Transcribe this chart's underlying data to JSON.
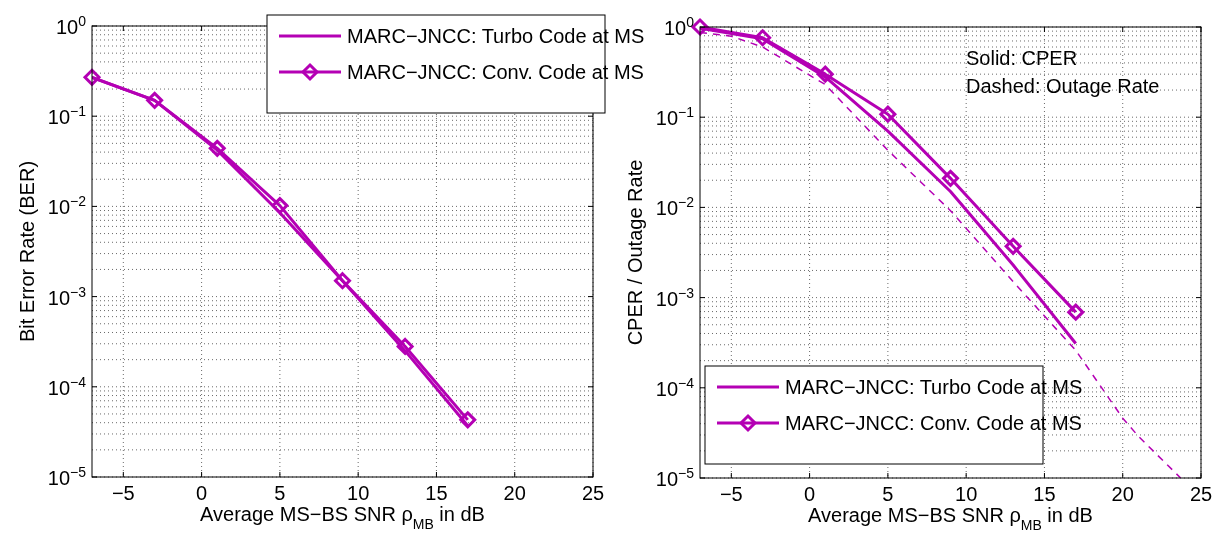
{
  "chart_data": [
    {
      "type": "line",
      "xlabel": "Average MS−BS SNR ρ$_{MB}$ in dB",
      "ylabel": "Bit Error Rate (BER)",
      "log": "y",
      "grid": true,
      "legend": "top right",
      "xlim": [
        -7,
        25
      ],
      "xticks": [
        -5,
        0,
        5,
        10,
        15,
        20,
        25
      ],
      "ylim": [
        1e-05,
        1
      ],
      "yticks": [
        {
          "value": 1e-05,
          "label": "10$^{−5}$"
        },
        {
          "value": 0.0001,
          "label": "10$^{−4}$"
        },
        {
          "value": 0.001,
          "label": "10$^{−3}$"
        },
        {
          "value": 0.01,
          "label": "10$^{−2}$"
        },
        {
          "value": 0.1,
          "label": "10$^{−1}$"
        },
        {
          "value": 1,
          "label": "10$^{0}$"
        }
      ],
      "x": [
        -7,
        -3,
        1,
        5,
        9,
        13,
        17
      ],
      "series": [
        {
          "name": "MARC−JNCC: Turbo Code at MS",
          "color": "#b400b4",
          "marker": "none",
          "line_style": "solid",
          "values": [
            0.27,
            0.15,
            0.042,
            0.0085,
            0.0015,
            0.00025,
            3.7e-05
          ]
        },
        {
          "name": "MARC−JNCC: Conv. Code at MS",
          "color": "#b400b4",
          "marker": "diamond",
          "line_style": "solid",
          "values": [
            0.27,
            0.15,
            0.044,
            0.0102,
            0.0015,
            0.00028,
            4.3e-05
          ]
        }
      ]
    },
    {
      "type": "line",
      "xlabel": "Average MS−BS SNR ρ$_{MB}$ in dB",
      "ylabel": "CPER / Outage Rate",
      "log": "y",
      "grid": true,
      "legend": "bottom left",
      "annotations": [
        "Solid: CPER",
        "Dashed: Outage Rate"
      ],
      "xlim": [
        -7,
        25
      ],
      "xticks": [
        -5,
        0,
        5,
        10,
        15,
        20,
        25
      ],
      "ylim": [
        1e-05,
        1
      ],
      "yticks": [
        {
          "value": 1e-05,
          "label": "10$^{−5}$"
        },
        {
          "value": 0.0001,
          "label": "10$^{−4}$"
        },
        {
          "value": 0.001,
          "label": "10$^{−3}$"
        },
        {
          "value": 0.01,
          "label": "10$^{−2}$"
        },
        {
          "value": 0.1,
          "label": "10$^{−1}$"
        },
        {
          "value": 1,
          "label": "10$^{0}$"
        }
      ],
      "x": [
        -7,
        -3,
        1,
        5,
        9,
        13,
        17
      ],
      "series": [
        {
          "name": "MARC−JNCC: Turbo Code at MS",
          "color": "#b400b4",
          "marker": "none",
          "line_style": "solid",
          "values": [
            0.97,
            0.74,
            0.28,
            0.07,
            0.015,
            0.0023,
            0.00031
          ]
        },
        {
          "name": "MARC−JNCC: Conv. Code at MS",
          "color": "#b400b4",
          "marker": "diamond",
          "line_style": "solid",
          "values": [
            1.0,
            0.76,
            0.3,
            0.108,
            0.021,
            0.0037,
            0.00069
          ]
        },
        {
          "color": "#b400b4",
          "marker": "none",
          "line_style": "dashed",
          "x": [
            -7,
            -5,
            -3,
            1,
            5,
            9,
            13,
            17,
            20,
            21,
            23.7
          ],
          "values": [
            0.87,
            0.79,
            0.6,
            0.23,
            0.043,
            0.0092,
            0.0015,
            0.00026,
            4.6e-05,
            2.9e-05,
            1e-05
          ]
        }
      ]
    }
  ]
}
